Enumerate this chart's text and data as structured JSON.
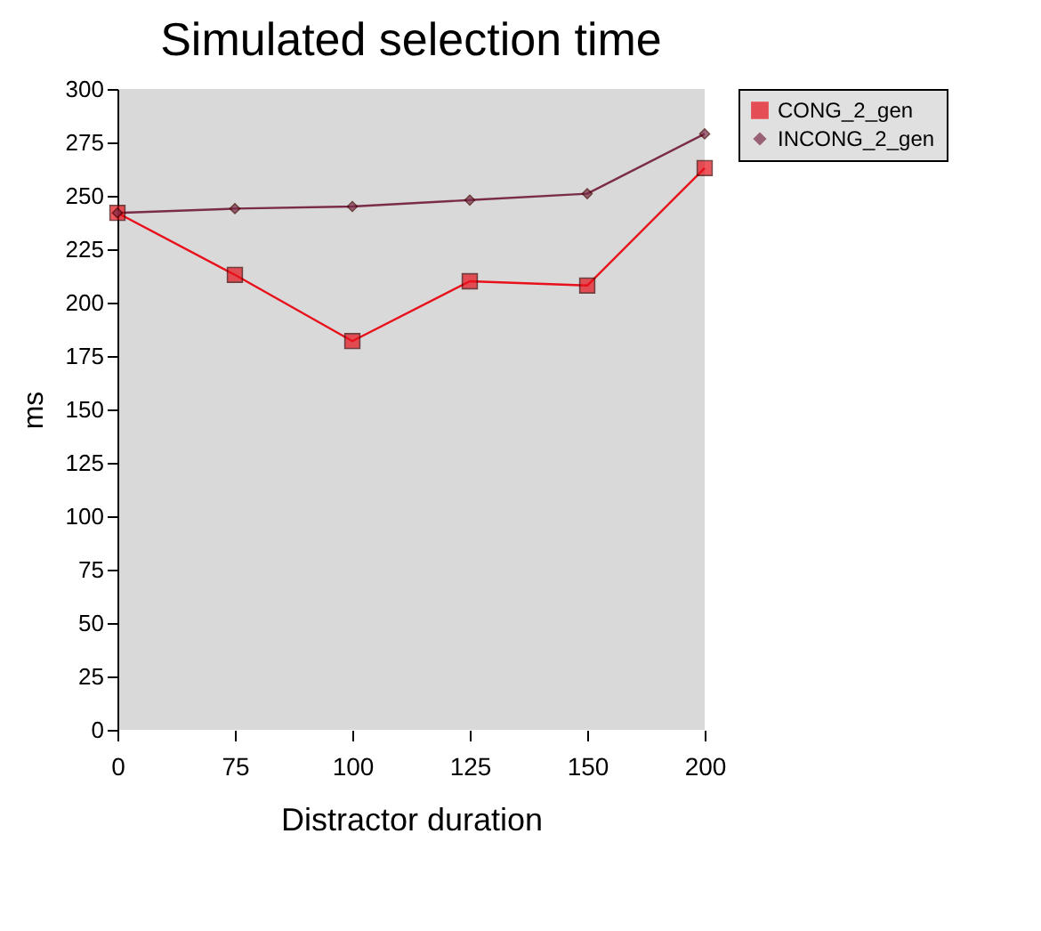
{
  "chart_data": {
    "type": "line",
    "title": "Simulated selection time",
    "xlabel": "Distractor duration",
    "ylabel": "ms",
    "categories": [
      "0",
      "75",
      "100",
      "125",
      "150",
      "200"
    ],
    "ylim": [
      0,
      300
    ],
    "yticks": [
      0,
      25,
      50,
      75,
      100,
      125,
      150,
      175,
      200,
      225,
      250,
      275,
      300
    ],
    "grid": false,
    "legend": "right",
    "series": [
      {
        "name": "CONG_2_gen",
        "color": "#e8101a",
        "marker": "square",
        "values": [
          242,
          213,
          182,
          210,
          208,
          263
        ]
      },
      {
        "name": "INCONG_2_gen",
        "color": "#7a2c48",
        "marker": "diamond",
        "values": [
          242,
          244,
          245,
          248,
          251,
          279
        ]
      }
    ]
  }
}
